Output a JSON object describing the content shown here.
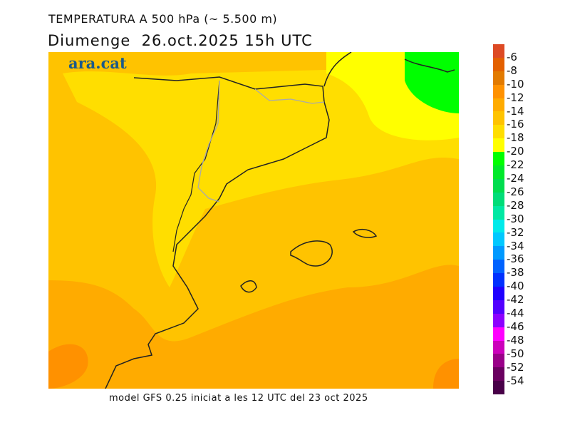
{
  "title": "TEMPERATURA A 500 hPa (~ 5.500 m)",
  "subtitle": "Diumenge  26.oct.2025 15h UTC",
  "logo": "ara.cat",
  "footer": "model GFS 0.25 iniciat a les 12 UTC del 23 oct 2025",
  "legend": {
    "labels": [
      "-6",
      "-8",
      "-10",
      "-12",
      "-14",
      "-16",
      "-18",
      "-20",
      "-22",
      "-24",
      "-26",
      "-28",
      "-30",
      "-32",
      "-34",
      "-36",
      "-38",
      "-40",
      "-42",
      "-44",
      "-46",
      "-48",
      "-50",
      "-52",
      "-54"
    ],
    "colors": [
      "#dd4a24",
      "#e36000",
      "#e27a00",
      "#ff9100",
      "#ffab00",
      "#ffc300",
      "#ffde00",
      "#ffff00",
      "#00ff00",
      "#00e92a",
      "#00dd4e",
      "#00dd78",
      "#00e8a3",
      "#00eaea",
      "#00c8ff",
      "#0099ff",
      "#0062ff",
      "#0030ff",
      "#1e00ff",
      "#5200ff",
      "#8c00ff",
      "#ff00ff",
      "#cc00bb",
      "#990088",
      "#6a0060",
      "#480048"
    ]
  }
}
